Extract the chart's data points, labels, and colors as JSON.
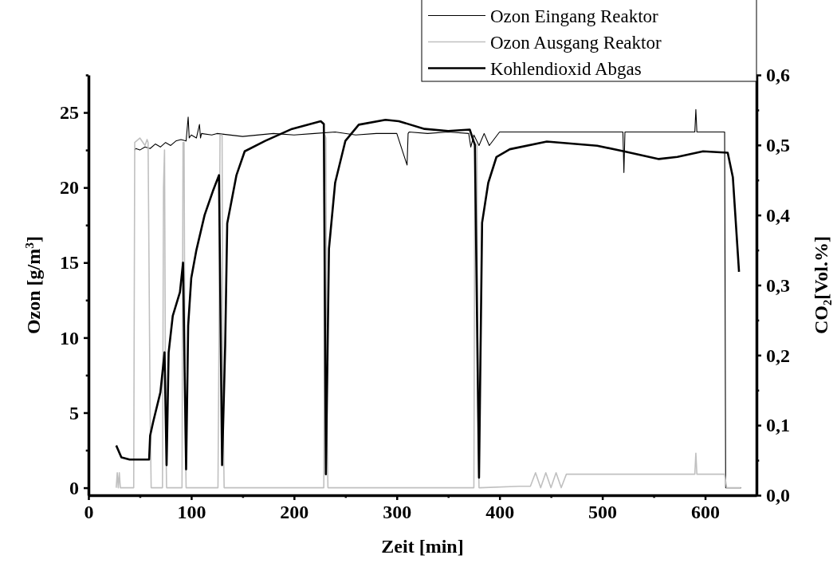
{
  "chart_data": {
    "type": "line",
    "xlabel": "Zeit [min]",
    "ylabel": "Ozon [g/m$^{3}$]",
    "y2label": "CO₂[Vol.%]",
    "xlim": [
      0,
      650
    ],
    "xticks": [
      0,
      {
        "value": 50,
        "label": null
      },
      100,
      {
        "value": 150,
        "label": null
      },
      200,
      {
        "value": 250,
        "label": null
      },
      300,
      {
        "value": 350,
        "label": null
      },
      400,
      {
        "value": 450,
        "label": null
      },
      500,
      {
        "value": 550,
        "label": null
      },
      600
    ],
    "ylim": [
      -0.5,
      27.5
    ],
    "yticks": [
      0,
      {
        "value": 2.5,
        "label": null
      },
      5,
      {
        "value": 7.5,
        "label": null
      },
      10,
      {
        "value": 12.5,
        "label": null
      },
      15,
      {
        "value": 17.5,
        "label": null
      },
      20,
      {
        "value": 22.5,
        "label": null
      },
      25,
      {
        "value": 27.5,
        "label": null
      }
    ],
    "y2lim": [
      0,
      0.6
    ],
    "y2ticks": [
      {
        "value": 0,
        "label": "0,0"
      },
      {
        "value": 0.05,
        "label": null
      },
      {
        "value": 0.1,
        "label": "0,1"
      },
      {
        "value": 0.15,
        "label": null
      },
      {
        "value": 0.2,
        "label": "0,2"
      },
      {
        "value": 0.25,
        "label": null
      },
      {
        "value": 0.3,
        "label": "0,3"
      },
      {
        "value": 0.35,
        "label": null
      },
      {
        "value": 0.4,
        "label": "0,4"
      },
      {
        "value": 0.45,
        "label": null
      },
      {
        "value": 0.5,
        "label": "0,5"
      },
      {
        "value": 0.55,
        "label": null
      },
      {
        "value": 0.6,
        "label": "0,6"
      }
    ],
    "grid": false,
    "legend": "top right",
    "marker": "none",
    "line_style": "solid",
    "series": [
      {
        "name": "Ozon Eingang Reaktor",
        "color": "#000000",
        "x": [
          45,
          46,
          50,
          55,
          60,
          65,
          70,
          75,
          80,
          85,
          90,
          95,
          97,
          98,
          100,
          105,
          108,
          109,
          110,
          120,
          125,
          150,
          180,
          200,
          220,
          240,
          260,
          280,
          300,
          310,
          311,
          312,
          330,
          350,
          370,
          372,
          375,
          380,
          385,
          390,
          400,
          430,
          450,
          480,
          500,
          520,
          521,
          522,
          550,
          580,
          590,
          591,
          592,
          610,
          619,
          620,
          621,
          625,
          635
        ],
        "values": [
          22.5,
          22.6,
          22.5,
          22.7,
          22.6,
          22.9,
          22.7,
          23.0,
          22.8,
          23.1,
          23.2,
          23.1,
          24.7,
          23.3,
          23.5,
          23.3,
          24.2,
          23.3,
          23.6,
          23.5,
          23.6,
          23.4,
          23.6,
          23.5,
          23.6,
          23.7,
          23.5,
          23.6,
          23.6,
          21.5,
          23.6,
          23.7,
          23.6,
          23.7,
          23.6,
          22.7,
          23.5,
          22.8,
          23.6,
          22.8,
          23.7,
          23.7,
          23.7,
          23.7,
          23.7,
          23.7,
          21.0,
          23.7,
          23.7,
          23.7,
          23.7,
          25.2,
          23.7,
          23.7,
          23.7,
          0,
          0,
          0,
          0
        ]
      },
      {
        "name": "Ozon Ausgang Reaktor",
        "color": "#c0c0c0",
        "x": [
          27,
          28,
          29,
          30,
          31,
          43,
          44,
          45,
          50,
          55,
          57,
          58,
          60,
          61,
          65,
          72,
          73,
          74,
          75,
          76,
          85,
          90,
          91,
          92,
          93,
          94,
          95,
          100,
          120,
          126,
          127,
          128,
          130,
          131,
          132,
          150,
          200,
          228,
          229,
          230,
          231,
          232,
          233,
          300,
          374,
          375,
          376,
          378,
          379,
          380,
          381,
          420,
          430,
          435,
          440,
          445,
          450,
          455,
          460,
          465,
          500,
          540,
          580,
          590,
          591,
          592,
          610,
          619,
          621,
          635
        ],
        "values": [
          0,
          1,
          0,
          1,
          0,
          0,
          0,
          23.0,
          23.3,
          22.8,
          23.2,
          23.0,
          5,
          0,
          0,
          0,
          20,
          22.5,
          5,
          0,
          0,
          0,
          0,
          23.0,
          23.0,
          5,
          0,
          0,
          0,
          0,
          10,
          23.5,
          23.5,
          5,
          0,
          0,
          0,
          0,
          0,
          23.5,
          23.3,
          5,
          0,
          0,
          0,
          0,
          23.0,
          22.8,
          5,
          0,
          0,
          0.1,
          0.1,
          1,
          0,
          1,
          0,
          1,
          0,
          0.9,
          0.9,
          0.9,
          0.9,
          0.9,
          2.3,
          0.9,
          0.9,
          0.9,
          0,
          0
        ]
      },
      {
        "name": "Kohlendioxid Abgas",
        "color": "#000000",
        "axis": "y2",
        "x": [
          27,
          32,
          40,
          59,
          60,
          63,
          70,
          74,
          76,
          78,
          82,
          89,
          92,
          95,
          97,
          100,
          105,
          113,
          121,
          127,
          130,
          133,
          135,
          144,
          152,
          172,
          198,
          226,
          229,
          231,
          234,
          240,
          250,
          263,
          289,
          302,
          327,
          350,
          371,
          376,
          380,
          383,
          389,
          397,
          410,
          446,
          495,
          521,
          555,
          573,
          598,
          622,
          627,
          633
        ],
        "values": [
          0.071,
          0.054,
          0.051,
          0.051,
          0.085,
          0.105,
          0.147,
          0.204,
          0.043,
          0.204,
          0.256,
          0.29,
          0.332,
          0.037,
          0.242,
          0.31,
          0.35,
          0.4,
          0.434,
          0.457,
          0.043,
          0.213,
          0.388,
          0.457,
          0.491,
          0.506,
          0.523,
          0.534,
          0.53,
          0.03,
          0.352,
          0.446,
          0.506,
          0.529,
          0.536,
          0.534,
          0.523,
          0.52,
          0.522,
          0.5,
          0.025,
          0.389,
          0.446,
          0.483,
          0.494,
          0.505,
          0.499,
          0.491,
          0.48,
          0.483,
          0.491,
          0.489,
          0.454,
          0.319
        ]
      }
    ]
  }
}
